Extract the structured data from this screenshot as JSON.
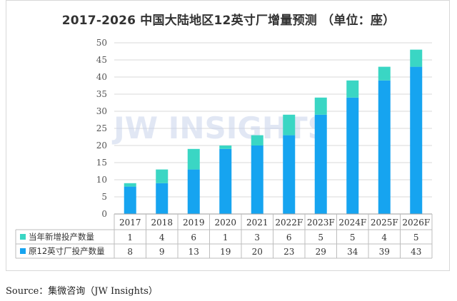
{
  "title": "2017-2026 中国大陆地区12英寸厂增量预测 （单位：座）",
  "watermark": "JW INSIGHTS",
  "source": "Source：集微咨询（JW Insights）",
  "colors": {
    "new": "#3ad6c4",
    "base": "#16a4f0",
    "grid": "#d9d9d9",
    "axis_text": "#555555",
    "watermark": "#c9d4ec"
  },
  "chart_data": {
    "type": "bar",
    "stacked": true,
    "categories": [
      "2017",
      "2018",
      "2019",
      "2020",
      "2021",
      "2022F",
      "2023F",
      "2024F",
      "2025F",
      "2026F"
    ],
    "series": [
      {
        "name": "原12英寸厂投产数量",
        "values": [
          8,
          9,
          13,
          19,
          20,
          23,
          29,
          34,
          39,
          43
        ]
      },
      {
        "name": "当年新增投产数量",
        "values": [
          1,
          4,
          6,
          1,
          3,
          6,
          5,
          5,
          4,
          5
        ]
      }
    ],
    "ylim": [
      0,
      50
    ],
    "yticks": [
      0,
      5,
      10,
      15,
      20,
      25,
      30,
      35,
      40,
      45,
      50
    ],
    "grid": true,
    "legend": "data-table"
  }
}
